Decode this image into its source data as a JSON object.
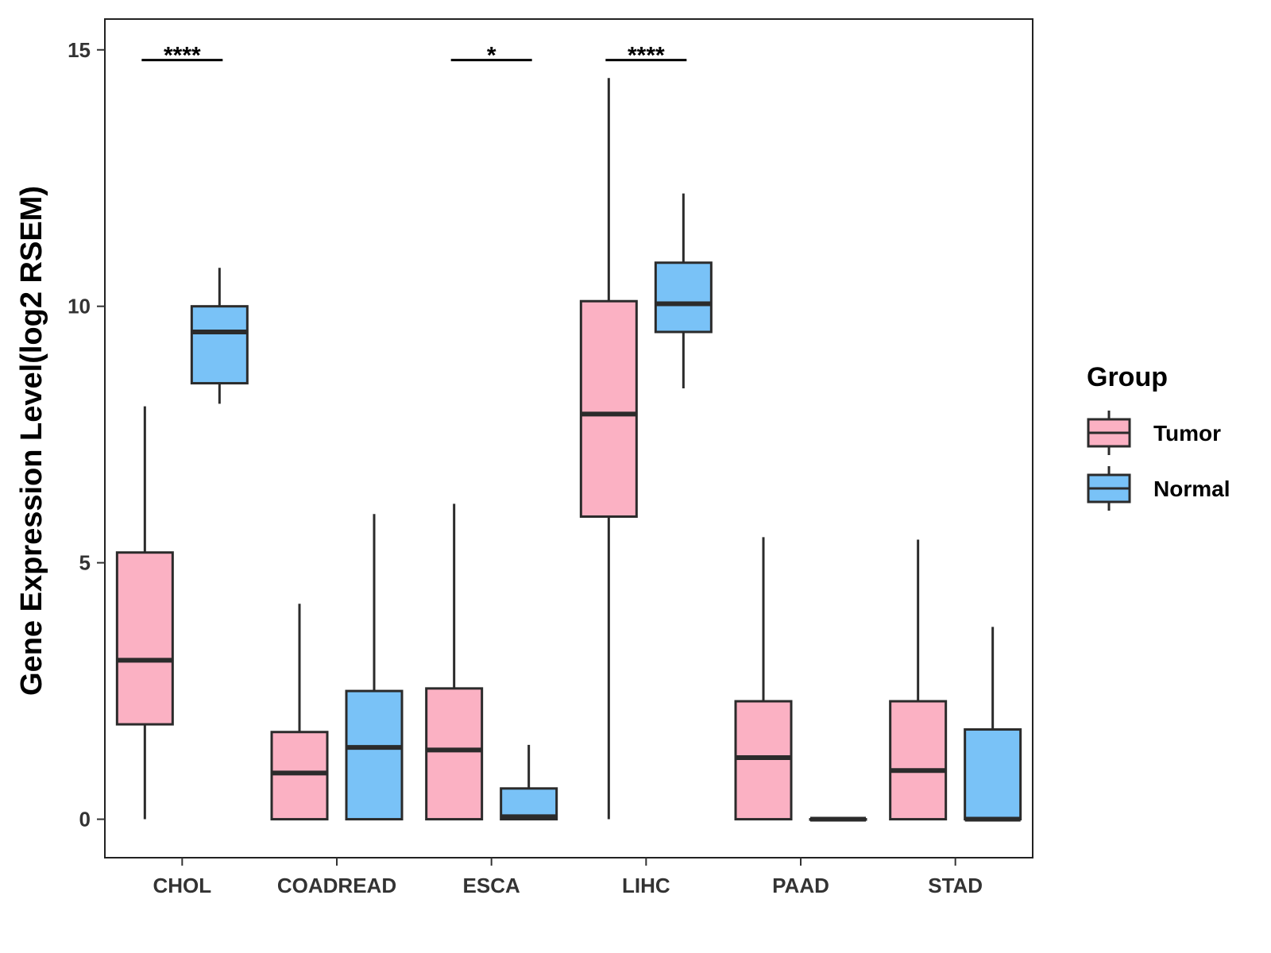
{
  "chart_data": {
    "type": "boxplot",
    "title": "",
    "xlabel": "",
    "ylabel": "Gene Expression Level(log2 RSEM)",
    "ylim": [
      -0.75,
      15.6
    ],
    "yticks": [
      0,
      5,
      10,
      15
    ],
    "yticks_text": [
      "0",
      "5",
      "10",
      "15"
    ],
    "categories": [
      "CHOL",
      "COADREAD",
      "ESCA",
      "LIHC",
      "PAAD",
      "STAD"
    ],
    "legend": {
      "title": "Group",
      "position": "right",
      "entries": [
        {
          "name": "Tumor",
          "color": "#FBB1C3"
        },
        {
          "name": "Normal",
          "color": "#79C2F7"
        }
      ]
    },
    "series": [
      {
        "name": "Tumor",
        "color": "#FBB1C3",
        "boxes": [
          {
            "category": "CHOL",
            "min": 0,
            "q1": 1.85,
            "median": 3.1,
            "q3": 5.2,
            "max": 8.05
          },
          {
            "category": "COADREAD",
            "min": 0,
            "q1": 0,
            "median": 0.9,
            "q3": 1.7,
            "max": 4.2
          },
          {
            "category": "ESCA",
            "min": 0,
            "q1": 0,
            "median": 1.35,
            "q3": 2.55,
            "max": 6.15
          },
          {
            "category": "LIHC",
            "min": 0,
            "q1": 5.9,
            "median": 7.9,
            "q3": 10.1,
            "max": 14.45
          },
          {
            "category": "PAAD",
            "min": 0,
            "q1": 0,
            "median": 1.2,
            "q3": 2.3,
            "max": 5.5
          },
          {
            "category": "STAD",
            "min": 0,
            "q1": 0,
            "median": 0.95,
            "q3": 2.3,
            "max": 5.45
          }
        ]
      },
      {
        "name": "Normal",
        "color": "#79C2F7",
        "boxes": [
          {
            "category": "CHOL",
            "min": 8.1,
            "q1": 8.5,
            "median": 9.5,
            "q3": 10.0,
            "max": 10.75
          },
          {
            "category": "COADREAD",
            "min": 0,
            "q1": 0,
            "median": 1.4,
            "q3": 2.5,
            "max": 5.95
          },
          {
            "category": "ESCA",
            "min": 0,
            "q1": 0,
            "median": 0.05,
            "q3": 0.6,
            "max": 1.45
          },
          {
            "category": "LIHC",
            "min": 8.4,
            "q1": 9.5,
            "median": 10.05,
            "q3": 10.85,
            "max": 12.2
          },
          {
            "category": "PAAD",
            "min": 0,
            "q1": 0,
            "median": 0,
            "q3": 0,
            "max": 0
          },
          {
            "category": "STAD",
            "min": 0,
            "q1": 0,
            "median": 0,
            "q3": 1.75,
            "max": 3.75
          }
        ]
      }
    ],
    "significance": [
      {
        "category": "CHOL",
        "label": "****",
        "y": 14.8
      },
      {
        "category": "ESCA",
        "label": "*",
        "y": 14.8
      },
      {
        "category": "LIHC",
        "label": "****",
        "y": 14.8
      }
    ]
  }
}
